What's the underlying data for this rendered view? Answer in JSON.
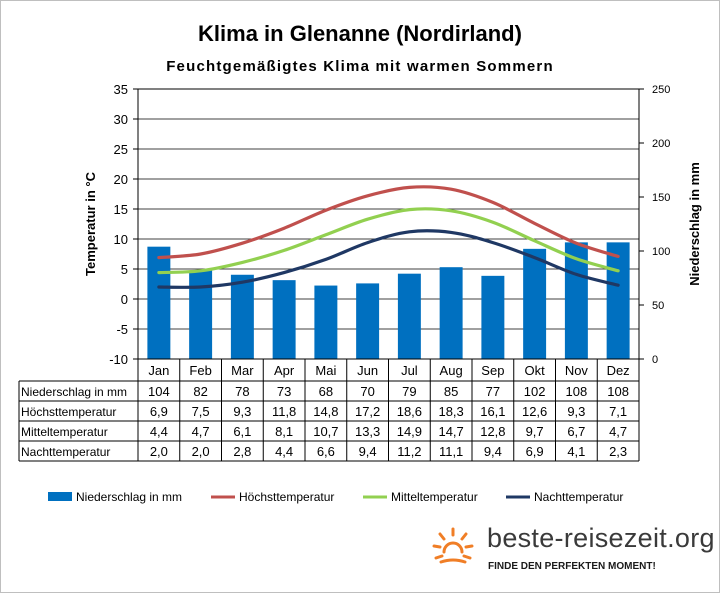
{
  "title": "Klima in Glenanne (Nordirland)",
  "subtitle": "Feuchtgemäßigtes Klima mit warmen Sommern",
  "brand": {
    "name": "beste-reisezeit.org",
    "tagline": "FINDE DEN PERFEKTEN MOMENT!",
    "icon": "sun-icon"
  },
  "colors": {
    "precip": "#0070c0",
    "max": "#c0504d",
    "mean": "#92d050",
    "min": "#1f3864"
  },
  "chart_data": {
    "type": "bar",
    "categories": [
      "Jan",
      "Feb",
      "Mar",
      "Apr",
      "Mai",
      "Jun",
      "Jul",
      "Aug",
      "Sep",
      "Okt",
      "Nov",
      "Dez"
    ],
    "ylabel": "Temperatur in °C",
    "y2label": "Niederschlag in mm",
    "ylim": [
      -10,
      35
    ],
    "y2lim": [
      0,
      250
    ],
    "yticks": [
      -10,
      -5,
      0,
      5,
      10,
      15,
      20,
      25,
      30,
      35
    ],
    "y2ticks": [
      0,
      50,
      100,
      150,
      200,
      250
    ],
    "grid": true,
    "legend": "bottom",
    "series": [
      {
        "name": "Niederschlag in mm",
        "type": "bar",
        "axis": "right",
        "values": [
          104,
          82,
          78,
          73,
          68,
          70,
          79,
          85,
          77,
          102,
          108,
          108
        ],
        "labels": [
          "104",
          "82",
          "78",
          "73",
          "68",
          "70",
          "79",
          "85",
          "77",
          "102",
          "108",
          "108"
        ]
      },
      {
        "name": "Höchsttemperatur",
        "type": "line",
        "axis": "left",
        "values": [
          6.9,
          7.5,
          9.3,
          11.8,
          14.8,
          17.2,
          18.6,
          18.3,
          16.1,
          12.6,
          9.3,
          7.1
        ],
        "labels": [
          "6,9",
          "7,5",
          "9,3",
          "11,8",
          "14,8",
          "17,2",
          "18,6",
          "18,3",
          "16,1",
          "12,6",
          "9,3",
          "7,1"
        ]
      },
      {
        "name": "Mitteltemperatur",
        "type": "line",
        "axis": "left",
        "values": [
          4.4,
          4.7,
          6.1,
          8.1,
          10.7,
          13.3,
          14.9,
          14.7,
          12.8,
          9.7,
          6.7,
          4.7
        ],
        "labels": [
          "4,4",
          "4,7",
          "6,1",
          "8,1",
          "10,7",
          "13,3",
          "14,9",
          "14,7",
          "12,8",
          "9,7",
          "6,7",
          "4,7"
        ]
      },
      {
        "name": "Nachttemperatur",
        "type": "line",
        "axis": "left",
        "values": [
          2.0,
          2.0,
          2.8,
          4.4,
          6.6,
          9.4,
          11.2,
          11.1,
          9.4,
          6.9,
          4.1,
          2.3
        ],
        "labels": [
          "2,0",
          "2,0",
          "2,8",
          "4,4",
          "6,6",
          "9,4",
          "11,2",
          "11,1",
          "9,4",
          "6,9",
          "4,1",
          "2,3"
        ]
      }
    ]
  }
}
